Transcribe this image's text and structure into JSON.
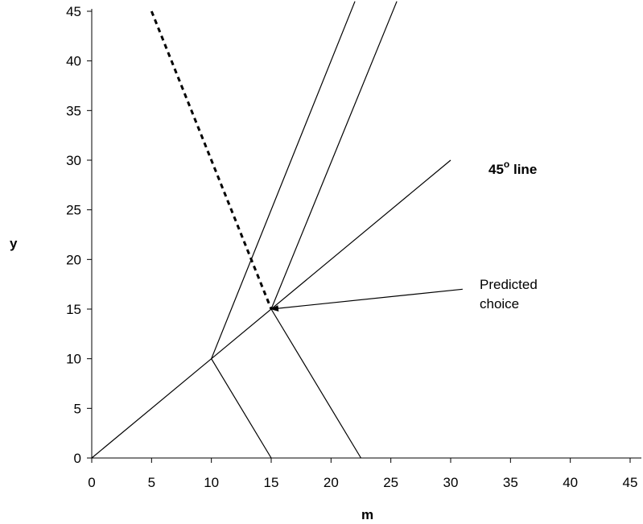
{
  "chart_data": {
    "type": "line",
    "xlabel": "m",
    "ylabel": "y",
    "xlim": [
      0,
      45
    ],
    "ylim": [
      0,
      45
    ],
    "x_ticks": [
      0,
      5,
      10,
      15,
      20,
      25,
      30,
      35,
      40,
      45
    ],
    "y_ticks": [
      0,
      5,
      10,
      15,
      20,
      25,
      30,
      35,
      40,
      45
    ],
    "grid": false,
    "series": [
      {
        "style": "solid",
        "points": [
          [
            0,
            0
          ],
          [
            30,
            30
          ]
        ]
      },
      {
        "style": "solid",
        "points": [
          [
            10,
            10
          ],
          [
            22,
            46
          ]
        ]
      },
      {
        "style": "solid",
        "points": [
          [
            15,
            15
          ],
          [
            25.5,
            46
          ]
        ]
      },
      {
        "style": "solid",
        "points": [
          [
            10,
            10
          ],
          [
            15,
            0
          ]
        ]
      },
      {
        "style": "solid",
        "points": [
          [
            15,
            15
          ],
          [
            22.5,
            0
          ]
        ]
      },
      {
        "style": "dotted",
        "points": [
          [
            5,
            45
          ],
          [
            15,
            15
          ]
        ]
      }
    ],
    "annotations": [
      {
        "text": "45",
        "superscript": "o",
        "suffix": " line"
      },
      {
        "text_lines": [
          "Predicted",
          "choice"
        ],
        "arrow_from": [
          31,
          17
        ],
        "arrow_to": [
          15,
          15
        ]
      }
    ]
  }
}
